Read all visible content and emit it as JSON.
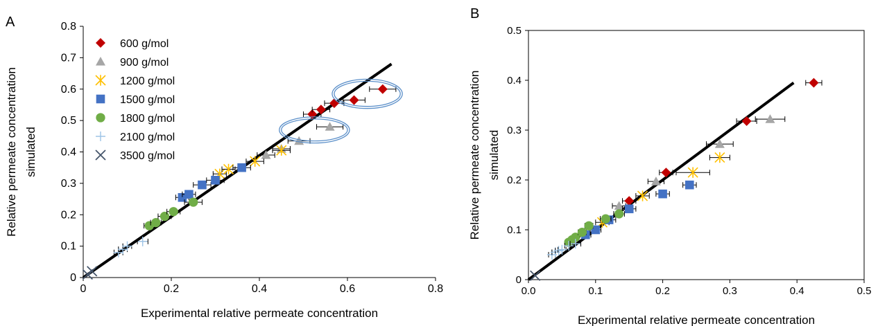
{
  "chart_data": [
    {
      "panel": "A",
      "type": "scatter",
      "xlabel": "Experimental relative permeate concentration",
      "ylabel": [
        "Relative permeate concentration",
        "simulated"
      ],
      "xlim": [
        0,
        0.8
      ],
      "ylim": [
        0,
        0.8
      ],
      "xticks": [
        0,
        0.2,
        0.4,
        0.6,
        0.8
      ],
      "yticks": [
        0,
        0.1,
        0.2,
        0.3,
        0.4,
        0.5,
        0.6,
        0.7,
        0.8
      ],
      "xtick_labels": [
        "0",
        "0.2",
        "0.4",
        "0.6",
        "0.8"
      ],
      "ytick_labels": [
        "0",
        "0.1",
        "0.2",
        "0.3",
        "0.4",
        "0.5",
        "0.6",
        "0.7",
        "0.8"
      ],
      "grid": false,
      "legend_position": "top-left",
      "parity_line": [
        [
          0,
          0
        ],
        [
          0.7,
          0.68
        ]
      ],
      "series": [
        {
          "name": "600 g/mol",
          "marker": "diamond",
          "color": "#c00000",
          "points": [
            [
              0.52,
              0.52
            ],
            [
              0.54,
              0.535
            ],
            [
              0.57,
              0.555
            ],
            [
              0.615,
              0.565
            ],
            [
              0.68,
              0.6
            ]
          ],
          "xerr": [
            0.02,
            0.02,
            0.022,
            0.025,
            0.03
          ]
        },
        {
          "name": "900 g/mol",
          "marker": "triangle",
          "color": "#a6a6a6",
          "points": [
            [
              0.415,
              0.39
            ],
            [
              0.45,
              0.41
            ],
            [
              0.49,
              0.435
            ],
            [
              0.56,
              0.48
            ]
          ],
          "xerr": [
            0.02,
            0.02,
            0.025,
            0.03
          ]
        },
        {
          "name": "1200 g/mol",
          "marker": "asterisk",
          "color": "#ffc000",
          "points": [
            [
              0.31,
              0.33
            ],
            [
              0.33,
              0.345
            ],
            [
              0.39,
              0.37
            ],
            [
              0.45,
              0.405
            ]
          ],
          "xerr": [
            0.015,
            0.015,
            0.02,
            0.02
          ]
        },
        {
          "name": "1500 g/mol",
          "marker": "square",
          "color": "#4472c4",
          "points": [
            [
              0.225,
              0.255
            ],
            [
              0.24,
              0.265
            ],
            [
              0.27,
              0.295
            ],
            [
              0.3,
              0.31
            ],
            [
              0.36,
              0.35
            ]
          ],
          "xerr": [
            0.015,
            0.015,
            0.02,
            0.02,
            0.02
          ]
        },
        {
          "name": "1800 g/mol",
          "marker": "circle",
          "color": "#70ad47",
          "points": [
            [
              0.15,
              0.165
            ],
            [
              0.165,
              0.175
            ],
            [
              0.185,
              0.195
            ],
            [
              0.205,
              0.21
            ],
            [
              0.25,
              0.24
            ]
          ],
          "xerr": [
            0.012,
            0.012,
            0.015,
            0.015,
            0.02
          ]
        },
        {
          "name": "2100 g/mol",
          "marker": "plus",
          "color": "#9dc3e6",
          "points": [
            [
              0.08,
              0.08
            ],
            [
              0.09,
              0.09
            ],
            [
              0.1,
              0.1
            ],
            [
              0.135,
              0.115
            ]
          ],
          "xerr": [
            0.01,
            0.01,
            0.01,
            0.012
          ]
        },
        {
          "name": "3500 g/mol",
          "marker": "cross",
          "color": "#44546a",
          "points": [
            [
              0.01,
              0.01
            ],
            [
              0.02,
              0.02
            ]
          ],
          "xerr": [
            0,
            0
          ]
        }
      ],
      "highlight_ellipses": [
        {
          "cx": 0.645,
          "cy": 0.585,
          "rx": 0.075,
          "ry": 0.04
        },
        {
          "cx": 0.525,
          "cy": 0.47,
          "rx": 0.075,
          "ry": 0.035
        }
      ]
    },
    {
      "panel": "B",
      "type": "scatter",
      "xlabel": "Experimental relative permeate concentration",
      "ylabel": [
        "Relative permeate concentration",
        "simulated"
      ],
      "xlim": [
        0,
        0.5
      ],
      "ylim": [
        0,
        0.5
      ],
      "xticks": [
        0,
        0.1,
        0.2,
        0.3,
        0.4,
        0.5
      ],
      "yticks": [
        0,
        0.1,
        0.2,
        0.3,
        0.4,
        0.5
      ],
      "xtick_labels": [
        "0.0",
        "0.1",
        "0.2",
        "0.3",
        "0.4",
        "0.5"
      ],
      "ytick_labels": [
        "0",
        "0.1",
        "0.2",
        "0.3",
        "0.4",
        "0.5"
      ],
      "grid": false,
      "parity_line": [
        [
          0,
          0
        ],
        [
          0.395,
          0.395
        ]
      ],
      "series": [
        {
          "name": "600 g/mol",
          "marker": "diamond",
          "color": "#c00000",
          "points": [
            [
              0.15,
              0.158
            ],
            [
              0.205,
              0.215
            ],
            [
              0.325,
              0.318
            ],
            [
              0.425,
              0.395
            ]
          ],
          "xerr": [
            0.01,
            0.01,
            0.015,
            0.012
          ]
        },
        {
          "name": "900 g/mol",
          "marker": "triangle",
          "color": "#a6a6a6",
          "points": [
            [
              0.135,
              0.148
            ],
            [
              0.19,
              0.197
            ],
            [
              0.285,
              0.272
            ],
            [
              0.36,
              0.322
            ]
          ],
          "xerr": [
            0.01,
            0.012,
            0.02,
            0.022
          ]
        },
        {
          "name": "1200 g/mol",
          "marker": "asterisk",
          "color": "#ffc000",
          "points": [
            [
              0.11,
              0.115
            ],
            [
              0.17,
              0.168
            ],
            [
              0.245,
              0.215
            ],
            [
              0.285,
              0.245
            ]
          ],
          "xerr": [
            0.01,
            0.01,
            0.025,
            0.015
          ]
        },
        {
          "name": "1500 g/mol",
          "marker": "square",
          "color": "#4472c4",
          "points": [
            [
              0.085,
              0.09
            ],
            [
              0.1,
              0.1
            ],
            [
              0.12,
              0.12
            ],
            [
              0.15,
              0.142
            ],
            [
              0.2,
              0.172
            ],
            [
              0.24,
              0.19
            ]
          ],
          "xerr": [
            0.008,
            0.008,
            0.01,
            0.01,
            0.01,
            0.01
          ]
        },
        {
          "name": "1800 g/mol",
          "marker": "circle",
          "color": "#70ad47",
          "points": [
            [
              0.06,
              0.075
            ],
            [
              0.065,
              0.08
            ],
            [
              0.07,
              0.085
            ],
            [
              0.08,
              0.095
            ],
            [
              0.09,
              0.108
            ],
            [
              0.115,
              0.122
            ],
            [
              0.135,
              0.132
            ]
          ],
          "xerr": [
            0.005,
            0.005,
            0.005,
            0.006,
            0.006,
            0.008,
            0.008
          ]
        },
        {
          "name": "2100 g/mol",
          "marker": "plus",
          "color": "#9dc3e6",
          "points": [
            [
              0.035,
              0.05
            ],
            [
              0.04,
              0.055
            ],
            [
              0.045,
              0.058
            ],
            [
              0.05,
              0.06
            ],
            [
              0.06,
              0.068
            ],
            [
              0.07,
              0.072
            ]
          ],
          "xerr": [
            0.005,
            0.005,
            0.005,
            0.006,
            0.006,
            0.008
          ]
        },
        {
          "name": "3500 g/mol",
          "marker": "cross",
          "color": "#44546a",
          "points": [
            [
              0.01,
              0.008
            ]
          ],
          "xerr": [
            0
          ]
        }
      ]
    }
  ]
}
